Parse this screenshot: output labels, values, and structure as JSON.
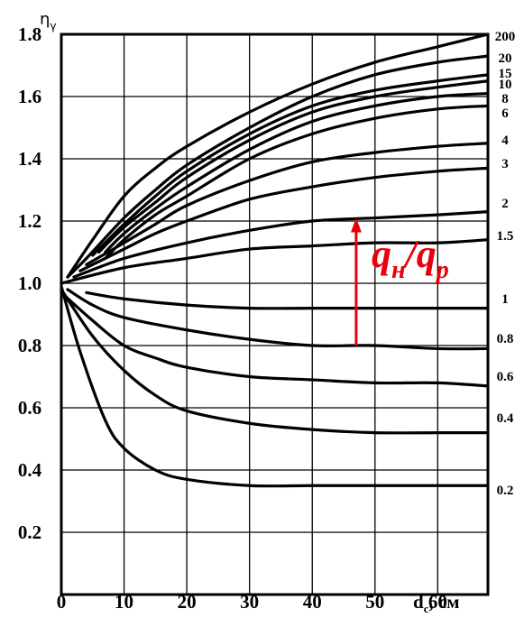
{
  "chart_data": {
    "type": "line",
    "ylabel_main": "η",
    "ylabel_sub": "γ",
    "xlabel_main": "d",
    "xlabel_sub": "c",
    "xlabel_unit": ", см",
    "x_ticks": [
      "0",
      "10",
      "20",
      "30",
      "40",
      "50",
      "60"
    ],
    "y_ticks": [
      "0.2",
      "0.4",
      "0.6",
      "0.8",
      "1.0",
      "1.2",
      "1.4",
      "1.6",
      "1.8"
    ],
    "xlim": [
      0,
      68
    ],
    "ylim": [
      0,
      1.8
    ],
    "grid": true,
    "annotation": {
      "q1": "q",
      "sub1": "н",
      "slash": "/",
      "q2": "q",
      "sub2": "р",
      "color": "#e8000b",
      "arrow_x": 47,
      "arrow_from": 0.8,
      "arrow_to": 1.21
    },
    "series": [
      {
        "label": "200",
        "values": [
          [
            1,
            1.02
          ],
          [
            5,
            1.14
          ],
          [
            10,
            1.28
          ],
          [
            15,
            1.37
          ],
          [
            20,
            1.44
          ],
          [
            30,
            1.55
          ],
          [
            40,
            1.64
          ],
          [
            50,
            1.71
          ],
          [
            60,
            1.76
          ],
          [
            68,
            1.8
          ]
        ]
      },
      {
        "label": "20",
        "values": [
          [
            1,
            1.02
          ],
          [
            4,
            1.08
          ],
          [
            10,
            1.21
          ],
          [
            15,
            1.3
          ],
          [
            20,
            1.38
          ],
          [
            30,
            1.5
          ],
          [
            40,
            1.6
          ],
          [
            50,
            1.67
          ],
          [
            60,
            1.71
          ],
          [
            68,
            1.73
          ]
        ]
      },
      {
        "label": "15",
        "values": [
          [
            5,
            1.09
          ],
          [
            10,
            1.19
          ],
          [
            15,
            1.28
          ],
          [
            20,
            1.36
          ],
          [
            30,
            1.48
          ],
          [
            40,
            1.57
          ],
          [
            50,
            1.62
          ],
          [
            60,
            1.65
          ],
          [
            68,
            1.67
          ]
        ]
      },
      {
        "label": "10",
        "values": [
          [
            6,
            1.1
          ],
          [
            10,
            1.18
          ],
          [
            15,
            1.26
          ],
          [
            20,
            1.34
          ],
          [
            30,
            1.46
          ],
          [
            40,
            1.55
          ],
          [
            50,
            1.6
          ],
          [
            60,
            1.63
          ],
          [
            68,
            1.65
          ]
        ]
      },
      {
        "label": "8",
        "values": [
          [
            7,
            1.1
          ],
          [
            10,
            1.16
          ],
          [
            15,
            1.24
          ],
          [
            20,
            1.31
          ],
          [
            30,
            1.43
          ],
          [
            40,
            1.52
          ],
          [
            50,
            1.57
          ],
          [
            60,
            1.6
          ],
          [
            68,
            1.61
          ]
        ]
      },
      {
        "label": "6",
        "values": [
          [
            7,
            1.08
          ],
          [
            10,
            1.14
          ],
          [
            15,
            1.22
          ],
          [
            20,
            1.28
          ],
          [
            30,
            1.4
          ],
          [
            40,
            1.48
          ],
          [
            50,
            1.53
          ],
          [
            60,
            1.56
          ],
          [
            68,
            1.57
          ]
        ]
      },
      {
        "label": "4",
        "values": [
          [
            4,
            1.06
          ],
          [
            10,
            1.13
          ],
          [
            15,
            1.19
          ],
          [
            20,
            1.25
          ],
          [
            30,
            1.33
          ],
          [
            40,
            1.39
          ],
          [
            50,
            1.42
          ],
          [
            60,
            1.44
          ],
          [
            68,
            1.45
          ]
        ]
      },
      {
        "label": "3",
        "values": [
          [
            3,
            1.04
          ],
          [
            10,
            1.11
          ],
          [
            15,
            1.16
          ],
          [
            20,
            1.2
          ],
          [
            30,
            1.27
          ],
          [
            40,
            1.31
          ],
          [
            50,
            1.34
          ],
          [
            60,
            1.36
          ],
          [
            68,
            1.37
          ]
        ]
      },
      {
        "label": "2",
        "values": [
          [
            2,
            1.02
          ],
          [
            10,
            1.08
          ],
          [
            20,
            1.13
          ],
          [
            30,
            1.17
          ],
          [
            40,
            1.2
          ],
          [
            50,
            1.21
          ],
          [
            60,
            1.22
          ],
          [
            68,
            1.23
          ]
        ]
      },
      {
        "label": "1.5",
        "values": [
          [
            0,
            1.0
          ],
          [
            10,
            1.05
          ],
          [
            20,
            1.08
          ],
          [
            30,
            1.11
          ],
          [
            40,
            1.12
          ],
          [
            50,
            1.13
          ],
          [
            60,
            1.13
          ],
          [
            68,
            1.14
          ]
        ]
      },
      {
        "label": "1",
        "values": [
          [
            4,
            0.97
          ],
          [
            10,
            0.95
          ],
          [
            20,
            0.93
          ],
          [
            30,
            0.92
          ],
          [
            40,
            0.92
          ],
          [
            50,
            0.92
          ],
          [
            60,
            0.92
          ],
          [
            68,
            0.92
          ]
        ]
      },
      {
        "label": "0.8",
        "values": [
          [
            1,
            0.98
          ],
          [
            5,
            0.93
          ],
          [
            10,
            0.89
          ],
          [
            20,
            0.85
          ],
          [
            30,
            0.82
          ],
          [
            40,
            0.8
          ],
          [
            50,
            0.8
          ],
          [
            60,
            0.79
          ],
          [
            68,
            0.79
          ]
        ]
      },
      {
        "label": "0.6",
        "values": [
          [
            0,
            0.97
          ],
          [
            5,
            0.88
          ],
          [
            10,
            0.8
          ],
          [
            15,
            0.76
          ],
          [
            20,
            0.73
          ],
          [
            30,
            0.7
          ],
          [
            40,
            0.69
          ],
          [
            50,
            0.68
          ],
          [
            60,
            0.68
          ],
          [
            68,
            0.67
          ]
        ]
      },
      {
        "label": "0.4",
        "values": [
          [
            0,
            0.98
          ],
          [
            5,
            0.83
          ],
          [
            10,
            0.72
          ],
          [
            15,
            0.64
          ],
          [
            20,
            0.59
          ],
          [
            30,
            0.55
          ],
          [
            40,
            0.53
          ],
          [
            50,
            0.52
          ],
          [
            60,
            0.52
          ],
          [
            68,
            0.52
          ]
        ]
      },
      {
        "label": "0.2",
        "values": [
          [
            0,
            0.99
          ],
          [
            3,
            0.78
          ],
          [
            7,
            0.56
          ],
          [
            10,
            0.47
          ],
          [
            15,
            0.4
          ],
          [
            20,
            0.37
          ],
          [
            30,
            0.35
          ],
          [
            40,
            0.35
          ],
          [
            50,
            0.35
          ],
          [
            60,
            0.35
          ],
          [
            68,
            0.35
          ]
        ]
      }
    ]
  }
}
